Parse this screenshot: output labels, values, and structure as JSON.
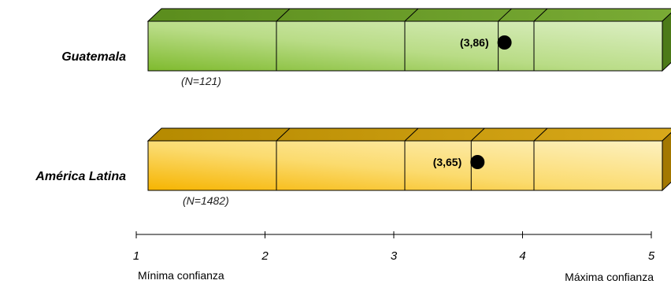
{
  "chart_data": {
    "type": "bar",
    "orientation": "horizontal",
    "xlim": [
      1,
      5
    ],
    "ticks": [
      "1",
      "2",
      "3",
      "4",
      "5"
    ],
    "axis_min_label": "Mínima confianza",
    "axis_max_label": "Máxima confianza",
    "grid": false,
    "legend": "none",
    "series": [
      {
        "name": "Guatemala",
        "n_label": "(N=121)",
        "value": 3.86,
        "value_label": "(3,86)",
        "color": "#8ec23c"
      },
      {
        "name": "América Latina",
        "n_label": "(N=1482)",
        "value": 3.65,
        "value_label": "(3,65)",
        "color": "#f7b800"
      }
    ]
  }
}
